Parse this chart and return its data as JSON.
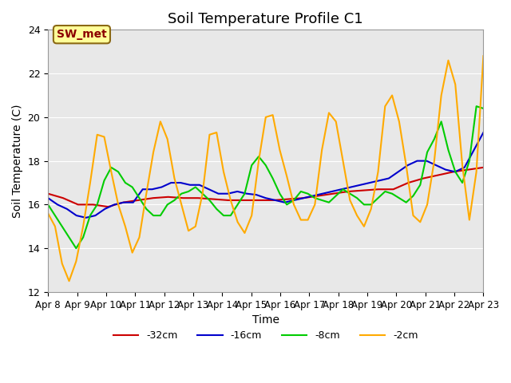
{
  "title": "Soil Temperature Profile C1",
  "xlabel": "Time",
  "ylabel": "Soil Temperature (C)",
  "ylim": [
    12,
    24
  ],
  "xlim": [
    0,
    15
  ],
  "background_color": "#e8e8e8",
  "annotation_text": "SW_met",
  "annotation_color": "#8b0000",
  "annotation_bg": "#ffff99",
  "annotation_border": "#8b6914",
  "xtick_labels": [
    "Apr 8",
    "Apr 9",
    "Apr 10",
    "Apr 11",
    "Apr 12",
    "Apr 13",
    "Apr 14",
    "Apr 15",
    "Apr 16",
    "Apr 17",
    "Apr 18",
    "Apr 19",
    "Apr 20",
    "Apr 21",
    "Apr 22",
    "Apr 23"
  ],
  "ytick_labels": [
    12,
    14,
    16,
    18,
    20,
    22,
    24
  ],
  "series": {
    "-32cm": {
      "color": "#cc0000",
      "linewidth": 1.5,
      "data": [
        16.5,
        16.3,
        16.0,
        16.0,
        15.9,
        16.1,
        16.2,
        16.3,
        16.35,
        16.3,
        16.3,
        16.25,
        16.2,
        16.2,
        16.2,
        16.2,
        16.25,
        16.3,
        16.4,
        16.5,
        16.6,
        16.65,
        16.7,
        16.7,
        17.0,
        17.2,
        17.35,
        17.5,
        17.6,
        17.7
      ]
    },
    "-16cm": {
      "color": "#0000cc",
      "linewidth": 1.5,
      "data": [
        16.3,
        16.0,
        15.8,
        15.5,
        15.4,
        15.5,
        15.8,
        16.0,
        16.1,
        16.1,
        16.7,
        16.7,
        16.8,
        17.0,
        17.0,
        16.9,
        16.9,
        16.7,
        16.5,
        16.5,
        16.6,
        16.5,
        16.45,
        16.3,
        16.2,
        16.1,
        16.2,
        16.3,
        16.4,
        16.5,
        16.6,
        16.7,
        16.8,
        16.9,
        17.0,
        17.1,
        17.2,
        17.5,
        17.8,
        18.0,
        18.0,
        17.8,
        17.6,
        17.5,
        17.7,
        18.5,
        19.3
      ]
    },
    "-8cm": {
      "color": "#00cc00",
      "linewidth": 1.5,
      "data": [
        16.0,
        15.5,
        15.0,
        14.5,
        14.0,
        14.5,
        15.5,
        16.0,
        17.1,
        17.7,
        17.5,
        17.0,
        16.8,
        16.3,
        15.8,
        15.5,
        15.5,
        16.0,
        16.2,
        16.5,
        16.6,
        16.8,
        16.5,
        16.2,
        15.8,
        15.5,
        15.5,
        16.0,
        16.5,
        17.8,
        18.2,
        17.8,
        17.2,
        16.5,
        16.0,
        16.2,
        16.6,
        16.5,
        16.3,
        16.2,
        16.1,
        16.4,
        16.7,
        16.5,
        16.3,
        16.0,
        16.0,
        16.3,
        16.6,
        16.5,
        16.3,
        16.1,
        16.4,
        16.9,
        18.4,
        19.0,
        19.8,
        18.5,
        17.5,
        17.0,
        18.0,
        20.5,
        20.4
      ]
    },
    "-2cm": {
      "color": "#ffaa00",
      "linewidth": 1.5,
      "data": [
        15.6,
        15.0,
        13.3,
        12.5,
        13.4,
        15.0,
        17.0,
        19.2,
        19.1,
        17.5,
        16.0,
        15.0,
        13.8,
        14.5,
        16.5,
        18.4,
        19.8,
        19.0,
        17.2,
        16.0,
        14.8,
        15.0,
        16.5,
        19.2,
        19.3,
        17.5,
        16.2,
        15.2,
        14.7,
        15.5,
        18.0,
        20.0,
        20.1,
        18.5,
        17.3,
        16.0,
        15.3,
        15.3,
        16.0,
        18.5,
        20.2,
        19.8,
        18.0,
        16.2,
        15.5,
        15.0,
        15.8,
        17.5,
        20.5,
        21.0,
        19.8,
        17.8,
        15.5,
        15.2,
        16.0,
        18.0,
        21.0,
        22.6,
        21.5,
        17.8,
        15.3,
        17.5,
        22.8
      ]
    }
  }
}
